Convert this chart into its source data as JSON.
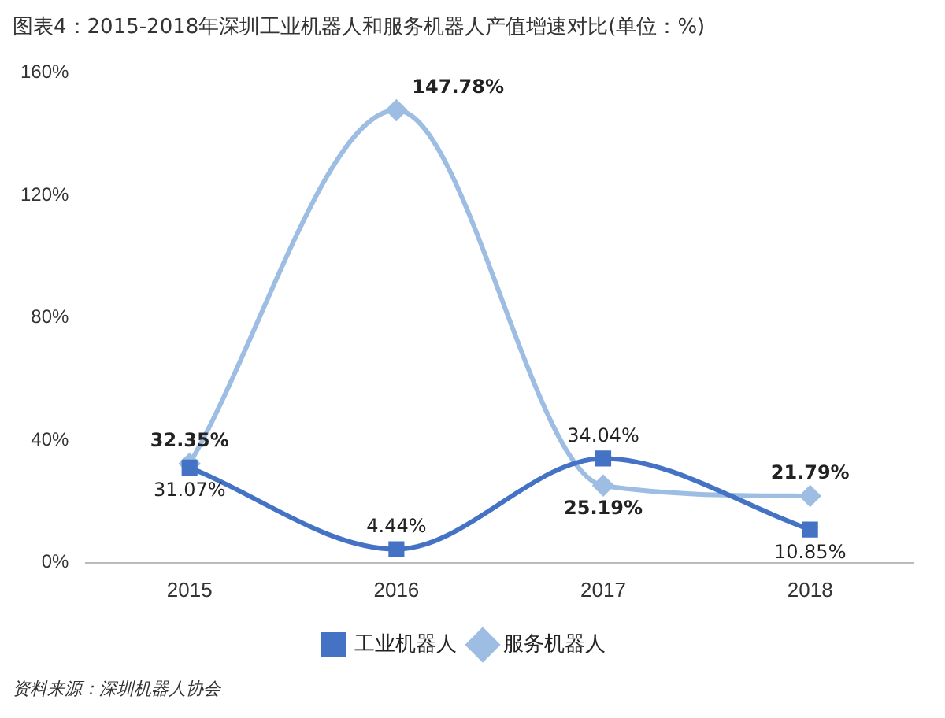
{
  "chart_data": {
    "type": "line",
    "title": "图表4：2015-2018年深圳工业机器人和服务机器人产值增速对比(单位：%)",
    "categories": [
      "2015",
      "2016",
      "2017",
      "2018"
    ],
    "series": [
      {
        "name": "工业机器人",
        "color": "#4472c4",
        "marker": "square",
        "values": [
          31.07,
          4.44,
          34.04,
          10.85
        ],
        "value_labels": [
          "31.07%",
          "4.44%",
          "34.04%",
          "10.85%"
        ]
      },
      {
        "name": "服务机器人",
        "color": "#9dbde3",
        "marker": "diamond",
        "values": [
          32.35,
          147.78,
          25.19,
          21.79
        ],
        "value_labels": [
          "32.35%",
          "147.78%",
          "25.19%",
          "21.79%"
        ]
      }
    ],
    "ylim": [
      0,
      160
    ],
    "yticks": [
      {
        "value": 0,
        "label": "0%"
      },
      {
        "value": 40,
        "label": "40%"
      },
      {
        "value": 80,
        "label": "80%"
      },
      {
        "value": 120,
        "label": "120%"
      },
      {
        "value": 160,
        "label": "160%"
      }
    ],
    "grid": false,
    "legend": "bottom",
    "annotations": [
      "资料来源：深圳机器人协会"
    ]
  }
}
